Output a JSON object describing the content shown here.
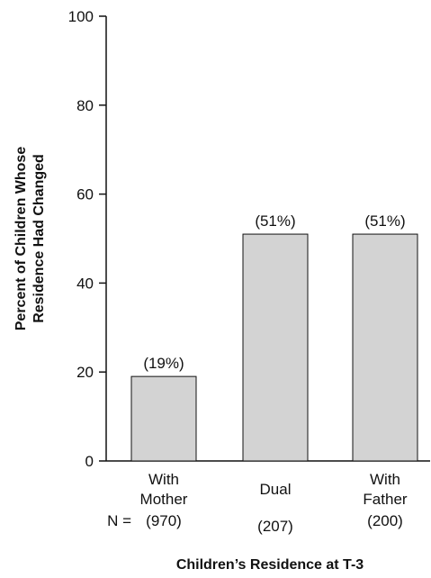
{
  "chart_data": {
    "type": "bar",
    "categories": [
      [
        "With",
        "Mother"
      ],
      [
        "Dual"
      ],
      [
        "With",
        "Father"
      ]
    ],
    "values": [
      19,
      51,
      51
    ],
    "value_labels": [
      "(19%)",
      "(51%)",
      "(51%)"
    ],
    "n_prefix": "N =",
    "n_labels": [
      "(970)",
      "(207)",
      "(200)"
    ],
    "ylabel_lines": [
      "Percent of Children Whose",
      "Residence Had Changed"
    ],
    "xlabel": "Children’s Residence at T-3",
    "ylim": [
      0,
      100
    ],
    "yticks": [
      0,
      20,
      40,
      60,
      80,
      100
    ],
    "bar_color": "#d3d3d3",
    "grid": false,
    "legend": "none"
  }
}
